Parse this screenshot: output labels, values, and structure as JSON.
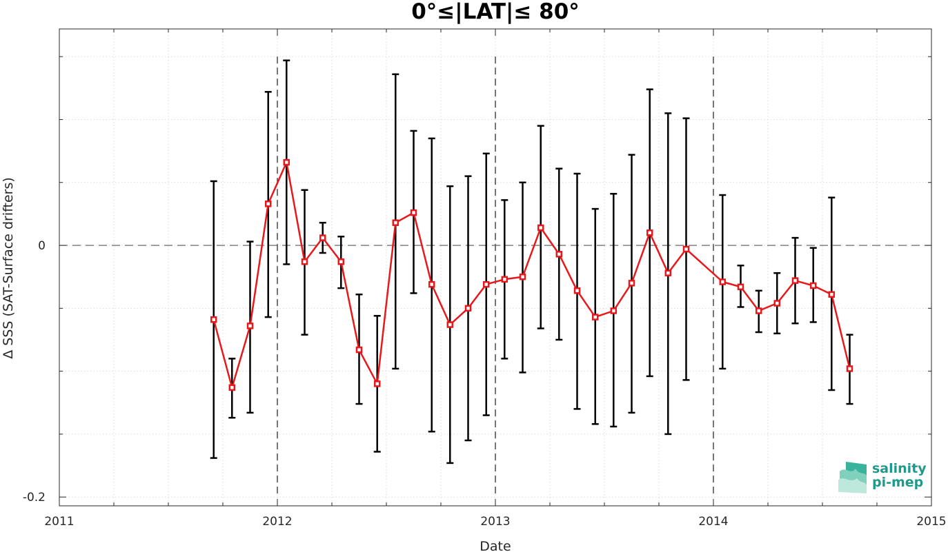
{
  "chart_data": {
    "type": "line",
    "title": "0°≤|LAT|≤ 80°",
    "xlabel": "Date",
    "ylabel": "Δ SSS (SAT-Surface drifters)",
    "x_tick_labels": [
      "2011",
      "2012",
      "2013",
      "2014",
      "2015"
    ],
    "x_ticks": [
      2011,
      2012,
      2013,
      2014,
      2015
    ],
    "y_tick_labels": [
      "-0.2",
      "0"
    ],
    "y_ticks": [
      -0.2,
      0
    ],
    "xlim": [
      2011,
      2015
    ],
    "ylim": [
      -0.207,
      0.172
    ],
    "grid": true,
    "year_separators": [
      2012,
      2013,
      2014
    ],
    "zero_line": 0,
    "series": [
      {
        "color": "#e8171b",
        "marker": "square",
        "x": [
          2011.708,
          2011.792,
          2011.875,
          2011.958,
          2012.042,
          2012.125,
          2012.208,
          2012.292,
          2012.375,
          2012.458,
          2012.542,
          2012.625,
          2012.708,
          2012.792,
          2012.875,
          2012.958,
          2013.042,
          2013.125,
          2013.208,
          2013.292,
          2013.375,
          2013.458,
          2013.542,
          2013.625,
          2013.708,
          2013.792,
          2013.875,
          2014.042,
          2014.125,
          2014.208,
          2014.292,
          2014.375,
          2014.458,
          2014.542,
          2014.625
        ],
        "y": [
          -0.059,
          -0.113,
          -0.064,
          0.033,
          0.066,
          -0.013,
          0.006,
          -0.013,
          -0.083,
          -0.11,
          0.018,
          0.026,
          -0.031,
          -0.063,
          -0.05,
          -0.031,
          -0.027,
          -0.025,
          0.014,
          -0.007,
          -0.036,
          -0.057,
          -0.052,
          -0.03,
          0.01,
          -0.022,
          -0.003,
          -0.029,
          -0.033,
          -0.052,
          -0.046,
          -0.028,
          -0.032,
          -0.039,
          -0.098
        ],
        "err_low": [
          -0.169,
          -0.137,
          -0.133,
          -0.057,
          -0.015,
          -0.071,
          -0.006,
          -0.034,
          -0.126,
          -0.164,
          -0.098,
          -0.038,
          -0.148,
          -0.173,
          -0.155,
          -0.135,
          -0.09,
          -0.101,
          -0.066,
          -0.075,
          -0.13,
          -0.142,
          -0.144,
          -0.133,
          -0.104,
          -0.15,
          -0.107,
          -0.098,
          -0.049,
          -0.069,
          -0.07,
          -0.062,
          -0.061,
          -0.115,
          -0.126
        ],
        "err_high": [
          0.051,
          -0.09,
          0.003,
          0.122,
          0.147,
          0.044,
          0.018,
          0.007,
          -0.039,
          -0.056,
          0.136,
          0.091,
          0.085,
          0.047,
          0.055,
          0.073,
          0.036,
          0.05,
          0.095,
          0.061,
          0.057,
          0.029,
          0.041,
          0.072,
          0.124,
          0.105,
          0.101,
          0.04,
          -0.016,
          -0.036,
          -0.022,
          0.006,
          -0.002,
          0.038,
          -0.071
        ]
      }
    ]
  },
  "logo": {
    "line1": "salinity",
    "line2": "pi-mep"
  },
  "colors": {
    "series": "#e8171b",
    "errorbar": "#000000",
    "logo_text": "#1f9a8a"
  }
}
